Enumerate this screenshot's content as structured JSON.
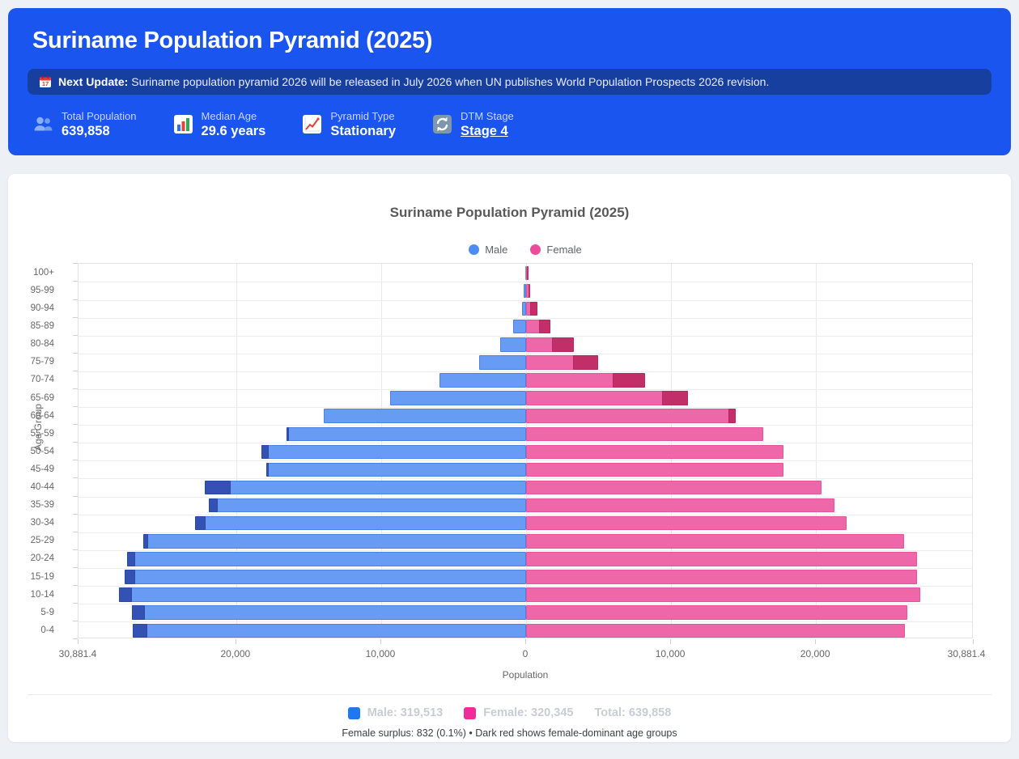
{
  "header": {
    "title": "Suriname Population Pyramid (2025)",
    "notice": {
      "prefix": "Next Update:",
      "text": "Suriname population pyramid 2026 will be released in July 2026 when UN publishes World Population Prospects 2026 revision."
    },
    "stats": [
      {
        "icon": "people-icon",
        "label": "Total Population",
        "value": "639,858",
        "link": false
      },
      {
        "icon": "bar-chart-icon",
        "label": "Median Age",
        "value": "29.6 years",
        "link": false
      },
      {
        "icon": "trend-chart-icon",
        "label": "Pyramid Type",
        "value": "Stationary",
        "link": false
      },
      {
        "icon": "sync-icon",
        "label": "DTM Stage",
        "value": "Stage 4",
        "link": true
      }
    ]
  },
  "chart": {
    "title": "Suriname Population Pyramid (2025)",
    "legend": [
      {
        "label": "Male",
        "color": "#4e8cf2"
      },
      {
        "label": "Female",
        "color": "#ec4d9b"
      }
    ]
  },
  "chart_data": {
    "type": "bar",
    "variant": "population-pyramid",
    "title": "Suriname Population Pyramid (2025)",
    "xlabel": "Population",
    "ylabel": "Age Group",
    "legend_position": "top",
    "grid": true,
    "age_groups": [
      "100+",
      "95-99",
      "90-94",
      "85-89",
      "80-84",
      "75-79",
      "70-74",
      "65-69",
      "60-64",
      "55-59",
      "50-54",
      "45-49",
      "40-44",
      "35-39",
      "30-34",
      "25-29",
      "20-24",
      "15-19",
      "10-14",
      "5-9",
      "0-4"
    ],
    "series": [
      {
        "name": "Male",
        "total": 319513,
        "values": [
          49,
          150,
          280,
          870,
          1800,
          3240,
          5980,
          9390,
          13970,
          16540,
          18270,
          17930,
          22180,
          21900,
          22850,
          26430,
          27540,
          27710,
          28074,
          27210,
          27150
        ]
      },
      {
        "name": "Female",
        "total": 320345,
        "values": [
          155,
          280,
          760,
          1680,
          3300,
          4950,
          8210,
          11170,
          14450,
          16370,
          17770,
          17760,
          20400,
          21290,
          22100,
          26100,
          26980,
          26980,
          27180,
          26316,
          26144
        ]
      }
    ],
    "axis": {
      "xlim": [
        -30881.4,
        30881.4
      ],
      "tick_values": [
        -30881.4,
        -20000,
        -10000,
        0,
        10000,
        20000,
        30881.4
      ],
      "tick_labels": [
        "30,881.4",
        "20,000",
        "10,000",
        "0",
        "10,000",
        "20,000",
        "30,881.4"
      ]
    },
    "colors": {
      "male": "#689cf4",
      "male_surplus": "#3352b4",
      "female": "#ee67a8",
      "female_surplus": "#c22e68"
    }
  },
  "footer": {
    "legend": [
      {
        "swatch": "#1f78f0",
        "label": "Male: 319,513"
      },
      {
        "swatch": "#ee2d9b",
        "label": "Female: 320,345"
      },
      {
        "swatch": null,
        "label": "Total: 639,858"
      }
    ],
    "note": "Female surplus: 832 (0.1%) • Dark red shows female-dominant age groups"
  }
}
